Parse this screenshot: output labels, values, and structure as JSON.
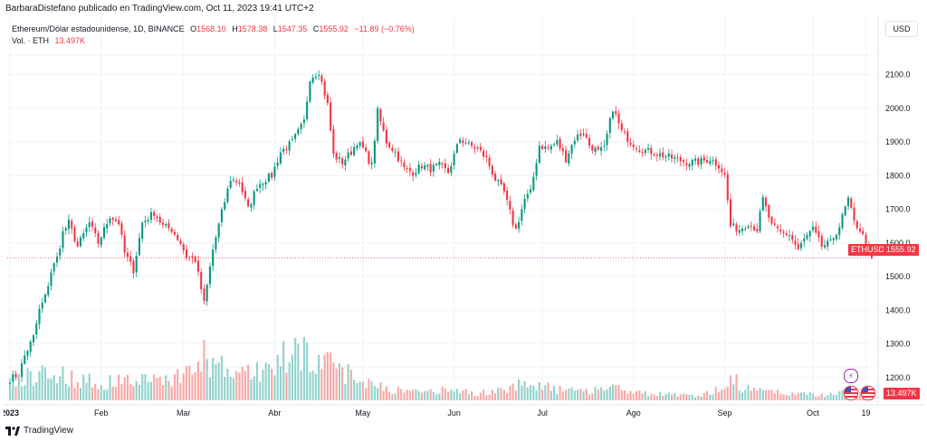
{
  "header": {
    "attribution": "BarbaraDistefano publicado en TradingView.com, Oct 11, 2023 19:41 UTC+2"
  },
  "legend": {
    "symbol": "Ethereum/Dólar estadounidense, 1D, BINANCE",
    "ohlc": [
      {
        "key": "O",
        "value": "1568.10"
      },
      {
        "key": "H",
        "value": "1578.38"
      },
      {
        "key": "L",
        "value": "1547.35"
      },
      {
        "key": "C",
        "value": "1555.92"
      }
    ],
    "change": "−11.89 (−0.76%)",
    "volume_label": "Vol. · ETH",
    "volume_value": "13.497K"
  },
  "currency_button": "USD",
  "price_tags": {
    "symbol": "ETHUSD",
    "last_price": "1555.92",
    "last_volume": "13.497K"
  },
  "footer": {
    "logo_text": "TradingView"
  },
  "colors": {
    "up": "#089981",
    "down": "#f23645",
    "up_volume": "#92d2cc",
    "down_volume": "#f7a9a7",
    "grid": "#f0f3fa",
    "text": "#131722"
  },
  "icons": [
    "lightning-icon",
    "us-flag-icon",
    "tradingview-logo-icon"
  ],
  "chart_data": {
    "type": "candlestick",
    "title": "Ethereum/Dólar estadounidense, 1D, BINANCE",
    "y_ticks": [
      1200,
      1300,
      1400,
      1500,
      1600,
      1700,
      1800,
      1900,
      2000,
      2100
    ],
    "ylim": [
      1130,
      2155
    ],
    "x_tick_labels": [
      "2023",
      "Feb",
      "Mar",
      "Abr",
      "May",
      "Jun",
      "Jul",
      "Ago",
      "Sep",
      "Oct",
      "19"
    ],
    "x_tick_days": [
      0,
      31,
      59,
      90,
      120,
      151,
      181,
      212,
      243,
      273,
      291
    ],
    "x_day_range": [
      0,
      293
    ],
    "grid": true,
    "last_close": 1555.92,
    "last_volume": 13497,
    "price_anchors": [
      [
        0,
        1196
      ],
      [
        3,
        1210
      ],
      [
        5,
        1265
      ],
      [
        8,
        1320
      ],
      [
        10,
        1400
      ],
      [
        12,
        1440
      ],
      [
        14,
        1515
      ],
      [
        16,
        1555
      ],
      [
        18,
        1630
      ],
      [
        20,
        1660
      ],
      [
        23,
        1590
      ],
      [
        27,
        1660
      ],
      [
        30,
        1600
      ],
      [
        34,
        1680
      ],
      [
        37,
        1660
      ],
      [
        39,
        1570
      ],
      [
        42,
        1520
      ],
      [
        45,
        1660
      ],
      [
        49,
        1690
      ],
      [
        52,
        1650
      ],
      [
        55,
        1640
      ],
      [
        58,
        1600
      ],
      [
        60,
        1560
      ],
      [
        63,
        1550
      ],
      [
        66,
        1420
      ],
      [
        69,
        1580
      ],
      [
        72,
        1690
      ],
      [
        75,
        1790
      ],
      [
        78,
        1780
      ],
      [
        81,
        1700
      ],
      [
        84,
        1770
      ],
      [
        87,
        1790
      ],
      [
        89,
        1800
      ],
      [
        92,
        1870
      ],
      [
        96,
        1900
      ],
      [
        100,
        1960
      ],
      [
        102,
        2090
      ],
      [
        105,
        2110
      ],
      [
        108,
        2010
      ],
      [
        110,
        1860
      ],
      [
        113,
        1840
      ],
      [
        116,
        1870
      ],
      [
        118,
        1900
      ],
      [
        120,
        1880
      ],
      [
        123,
        1830
      ],
      [
        125,
        1990
      ],
      [
        128,
        1900
      ],
      [
        131,
        1870
      ],
      [
        134,
        1820
      ],
      [
        137,
        1810
      ],
      [
        140,
        1830
      ],
      [
        143,
        1820
      ],
      [
        146,
        1830
      ],
      [
        149,
        1810
      ],
      [
        151,
        1860
      ],
      [
        153,
        1910
      ],
      [
        156,
        1890
      ],
      [
        159,
        1880
      ],
      [
        162,
        1850
      ],
      [
        165,
        1790
      ],
      [
        168,
        1750
      ],
      [
        171,
        1660
      ],
      [
        172,
        1640
      ],
      [
        175,
        1730
      ],
      [
        177,
        1750
      ],
      [
        180,
        1890
      ],
      [
        183,
        1880
      ],
      [
        186,
        1900
      ],
      [
        189,
        1850
      ],
      [
        192,
        1910
      ],
      [
        195,
        1930
      ],
      [
        197,
        1890
      ],
      [
        200,
        1870
      ],
      [
        202,
        1880
      ],
      [
        205,
        2000
      ],
      [
        208,
        1930
      ],
      [
        211,
        1900
      ],
      [
        214,
        1880
      ],
      [
        218,
        1870
      ],
      [
        222,
        1860
      ],
      [
        226,
        1850
      ],
      [
        230,
        1840
      ],
      [
        234,
        1840
      ],
      [
        238,
        1850
      ],
      [
        241,
        1830
      ],
      [
        243,
        1800
      ],
      [
        245,
        1650
      ],
      [
        248,
        1640
      ],
      [
        251,
        1660
      ],
      [
        254,
        1640
      ],
      [
        256,
        1730
      ],
      [
        259,
        1650
      ],
      [
        262,
        1630
      ],
      [
        265,
        1625
      ],
      [
        268,
        1580
      ],
      [
        270,
        1610
      ],
      [
        273,
        1640
      ],
      [
        276,
        1590
      ],
      [
        279,
        1600
      ],
      [
        282,
        1650
      ],
      [
        285,
        1730
      ],
      [
        287,
        1660
      ],
      [
        289,
        1640
      ],
      [
        291,
        1600
      ],
      [
        293,
        1556
      ]
    ],
    "volume_anchors": [
      [
        0,
        20
      ],
      [
        12,
        35
      ],
      [
        20,
        27
      ],
      [
        30,
        20
      ],
      [
        38,
        23
      ],
      [
        48,
        24
      ],
      [
        58,
        28
      ],
      [
        60,
        30
      ],
      [
        66,
        50
      ],
      [
        70,
        40
      ],
      [
        78,
        29
      ],
      [
        88,
        38
      ],
      [
        96,
        54
      ],
      [
        100,
        64
      ],
      [
        104,
        40
      ],
      [
        112,
        39
      ],
      [
        118,
        24
      ],
      [
        125,
        20
      ],
      [
        130,
        12
      ],
      [
        140,
        10
      ],
      [
        151,
        12
      ],
      [
        160,
        8
      ],
      [
        171,
        16
      ],
      [
        175,
        22
      ],
      [
        185,
        13
      ],
      [
        195,
        10
      ],
      [
        205,
        18
      ],
      [
        212,
        9
      ],
      [
        225,
        6
      ],
      [
        236,
        6
      ],
      [
        243,
        17
      ],
      [
        246,
        25
      ],
      [
        250,
        13
      ],
      [
        259,
        10
      ],
      [
        270,
        7
      ],
      [
        280,
        7
      ],
      [
        285,
        13
      ],
      [
        290,
        10
      ],
      [
        293,
        13
      ]
    ],
    "volume_axis_max": 100
  }
}
